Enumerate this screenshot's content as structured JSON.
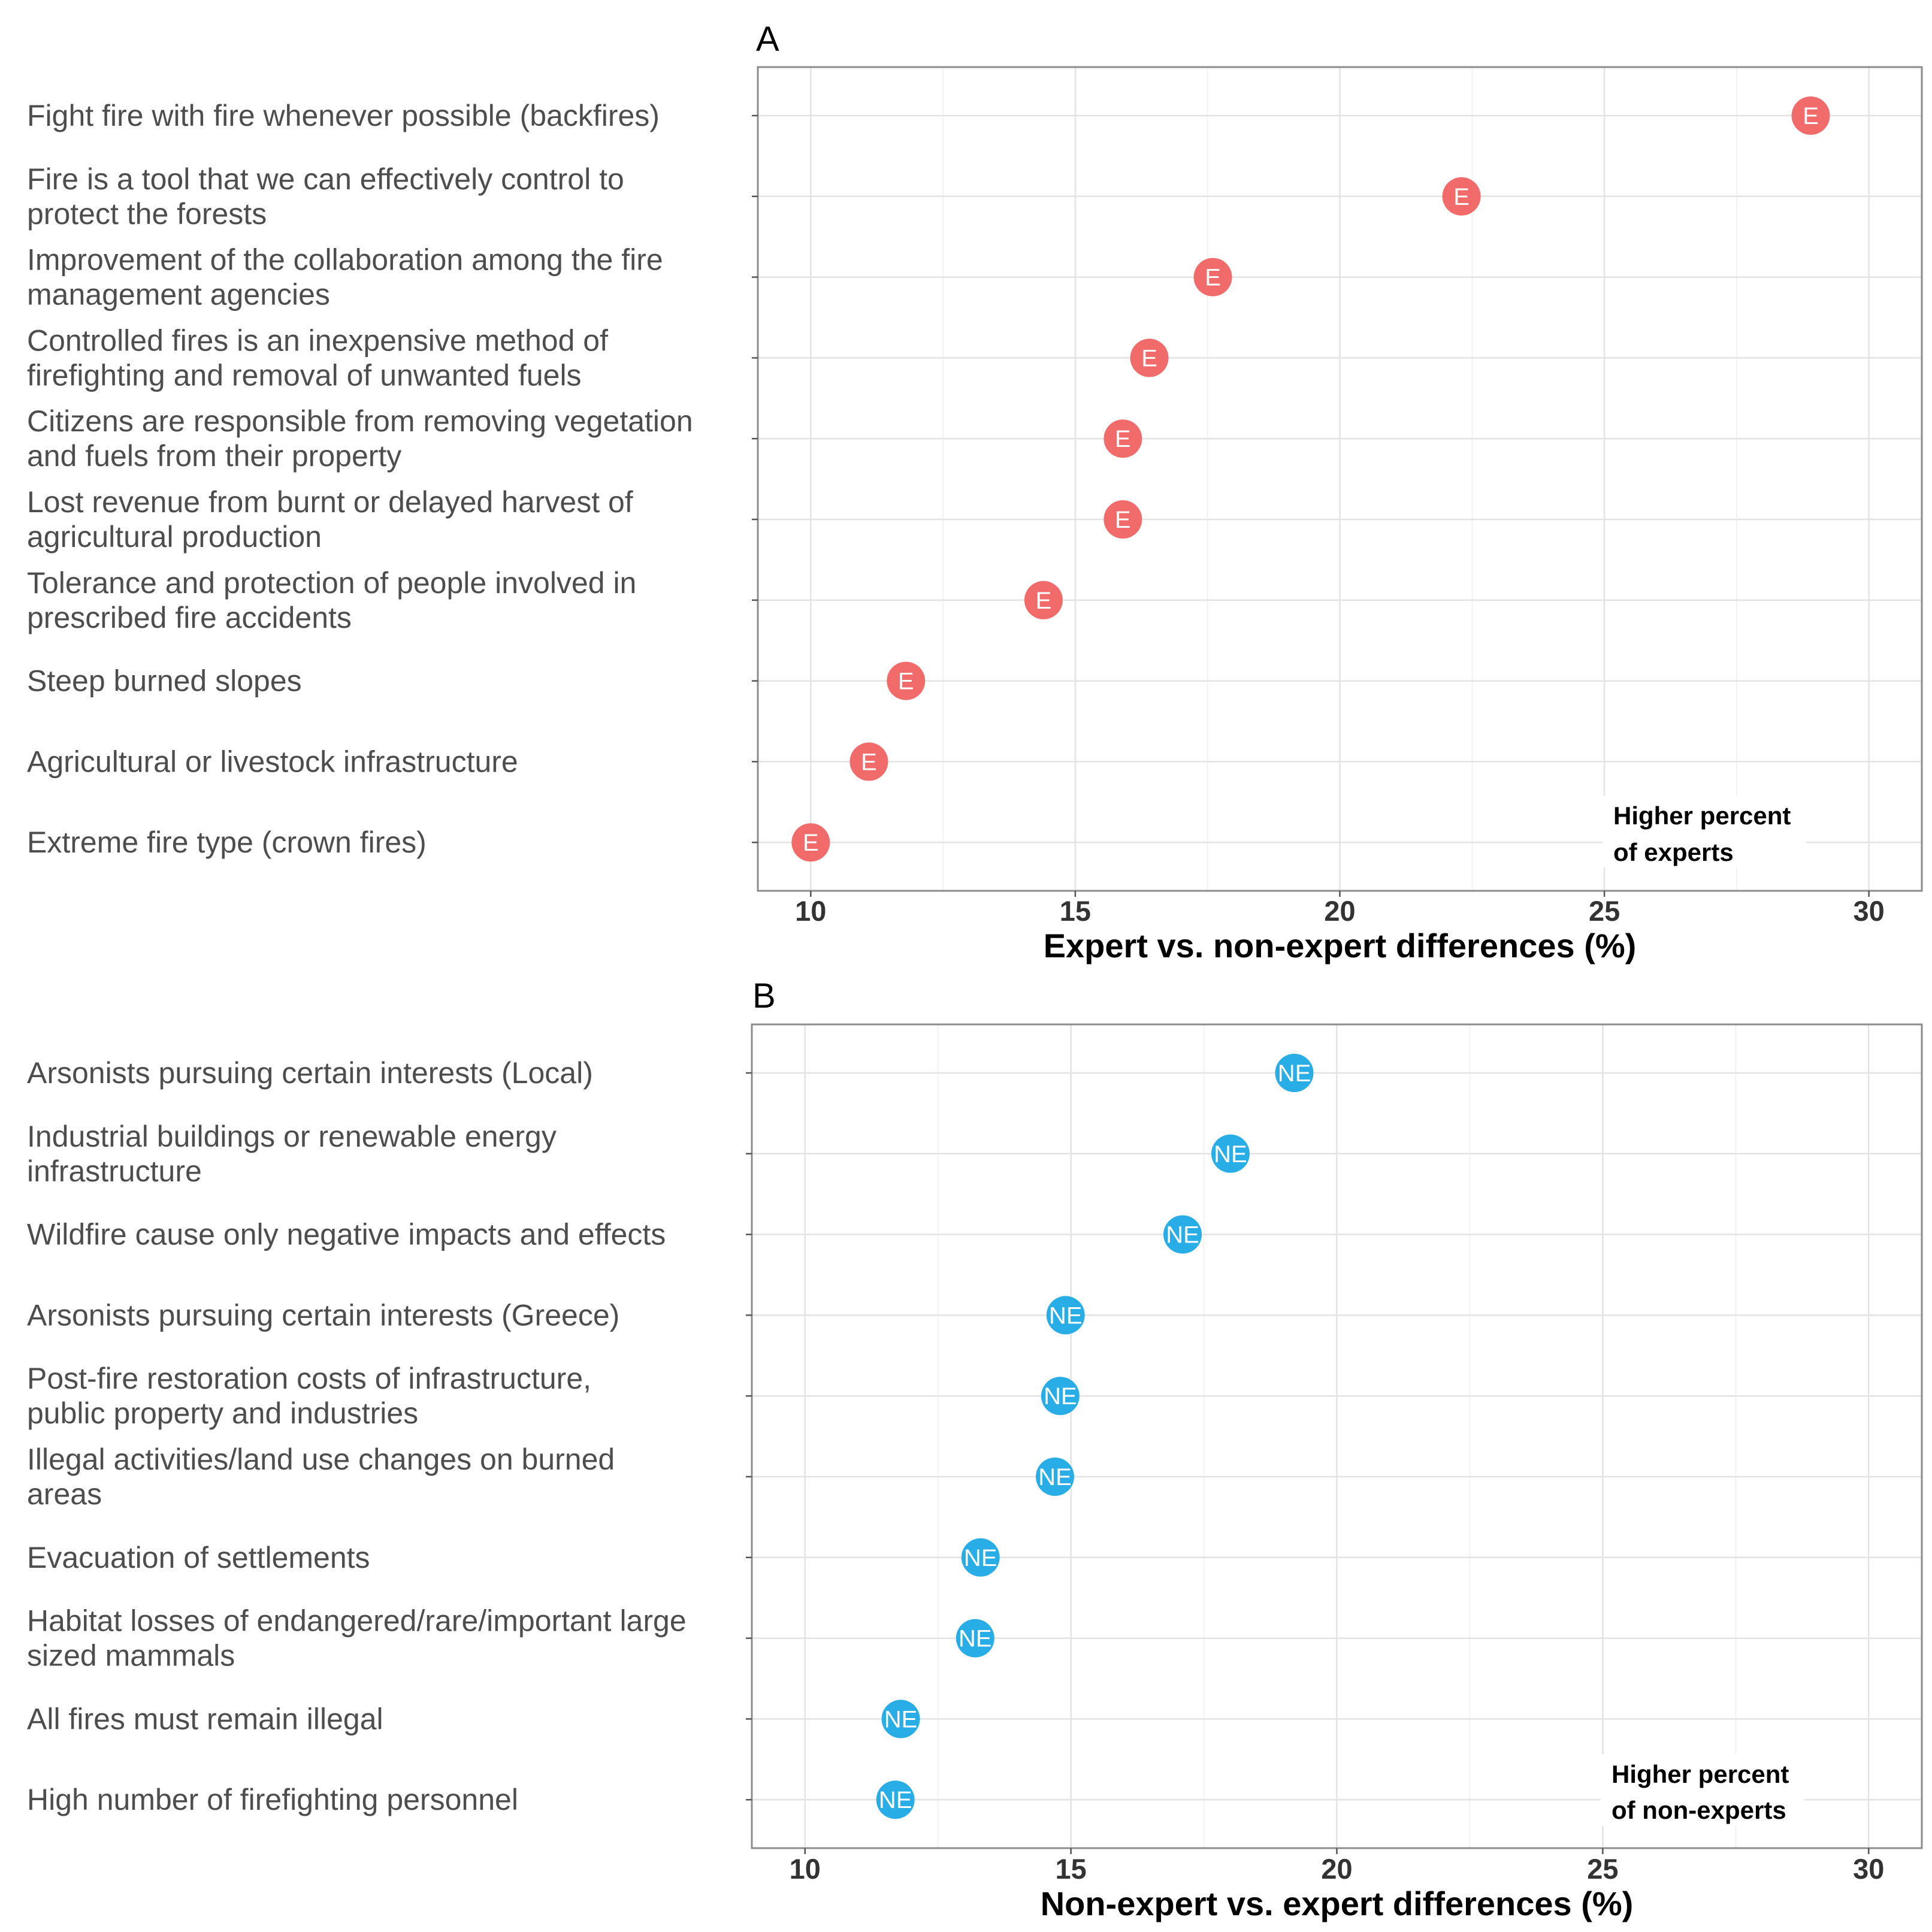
{
  "chart_data": [
    {
      "type": "scatter",
      "panel": "A",
      "xlabel": "Expert vs. non-expert differences (%)",
      "xlim": [
        9,
        31
      ],
      "xticks": [
        10,
        15,
        20,
        25,
        30
      ],
      "grid": true,
      "point_color": "#f26b6b",
      "annotation": [
        "Higher percent",
        "of experts"
      ],
      "points": [
        {
          "category": [
            "Fight fire with fire whenever possible (backfires)"
          ],
          "value": 28.9,
          "label": "E"
        },
        {
          "category": [
            "Fire is a tool that we can effectively control to",
            "protect the forests"
          ],
          "value": 22.3,
          "label": "E"
        },
        {
          "category": [
            "Improvement of the collaboration among the fire",
            "management agencies"
          ],
          "value": 17.6,
          "label": "E"
        },
        {
          "category": [
            "Controlled fires is an inexpensive method of",
            "firefighting and removal of unwanted fuels"
          ],
          "value": 16.4,
          "label": "E"
        },
        {
          "category": [
            "Citizens are responsible from removing vegetation",
            "and fuels from their property"
          ],
          "value": 15.9,
          "label": "E"
        },
        {
          "category": [
            "Lost revenue from burnt or delayed harvest of",
            "agricultural production"
          ],
          "value": 15.9,
          "label": "E"
        },
        {
          "category": [
            "Tolerance and protection of people involved in",
            "prescribed fire accidents"
          ],
          "value": 14.4,
          "label": "E"
        },
        {
          "category": [
            "Steep burned slopes"
          ],
          "value": 11.8,
          "label": "E"
        },
        {
          "category": [
            "Agricultural or livestock infrastructure"
          ],
          "value": 11.1,
          "label": "E"
        },
        {
          "category": [
            "Extreme fire type (crown fires)"
          ],
          "value": 10.0,
          "label": "E"
        }
      ]
    },
    {
      "type": "scatter",
      "panel": "B",
      "xlabel": "Non-expert vs. expert differences (%)",
      "xlim": [
        9,
        31
      ],
      "xticks": [
        10,
        15,
        20,
        25,
        30
      ],
      "grid": true,
      "point_color": "#29ade6",
      "annotation": [
        "Higher percent",
        "of non-experts"
      ],
      "points": [
        {
          "category": [
            "Arsonists pursuing certain interests (Local)"
          ],
          "value": 19.2,
          "label": "NE"
        },
        {
          "category": [
            "Industrial buildings or renewable energy",
            "infrastructure"
          ],
          "value": 18.0,
          "label": "NE"
        },
        {
          "category": [
            "Wildfire cause only negative impacts and effects"
          ],
          "value": 17.1,
          "label": "NE"
        },
        {
          "category": [
            "Arsonists pursuing certain interests (Greece)"
          ],
          "value": 14.9,
          "label": "NE"
        },
        {
          "category": [
            "Post-fire restoration costs of infrastructure,",
            "public property and industries"
          ],
          "value": 14.8,
          "label": "NE"
        },
        {
          "category": [
            "Illegal activities/land use changes on burned",
            "areas"
          ],
          "value": 14.7,
          "label": "NE"
        },
        {
          "category": [
            "Evacuation of settlements"
          ],
          "value": 13.3,
          "label": "NE"
        },
        {
          "category": [
            "Habitat losses of endangered/rare/important large",
            "sized mammals"
          ],
          "value": 13.2,
          "label": "NE"
        },
        {
          "category": [
            "All fires must remain illegal"
          ],
          "value": 11.8,
          "label": "NE"
        },
        {
          "category": [
            "High number of firefighting personnel"
          ],
          "value": 11.7,
          "label": "NE"
        }
      ]
    }
  ]
}
